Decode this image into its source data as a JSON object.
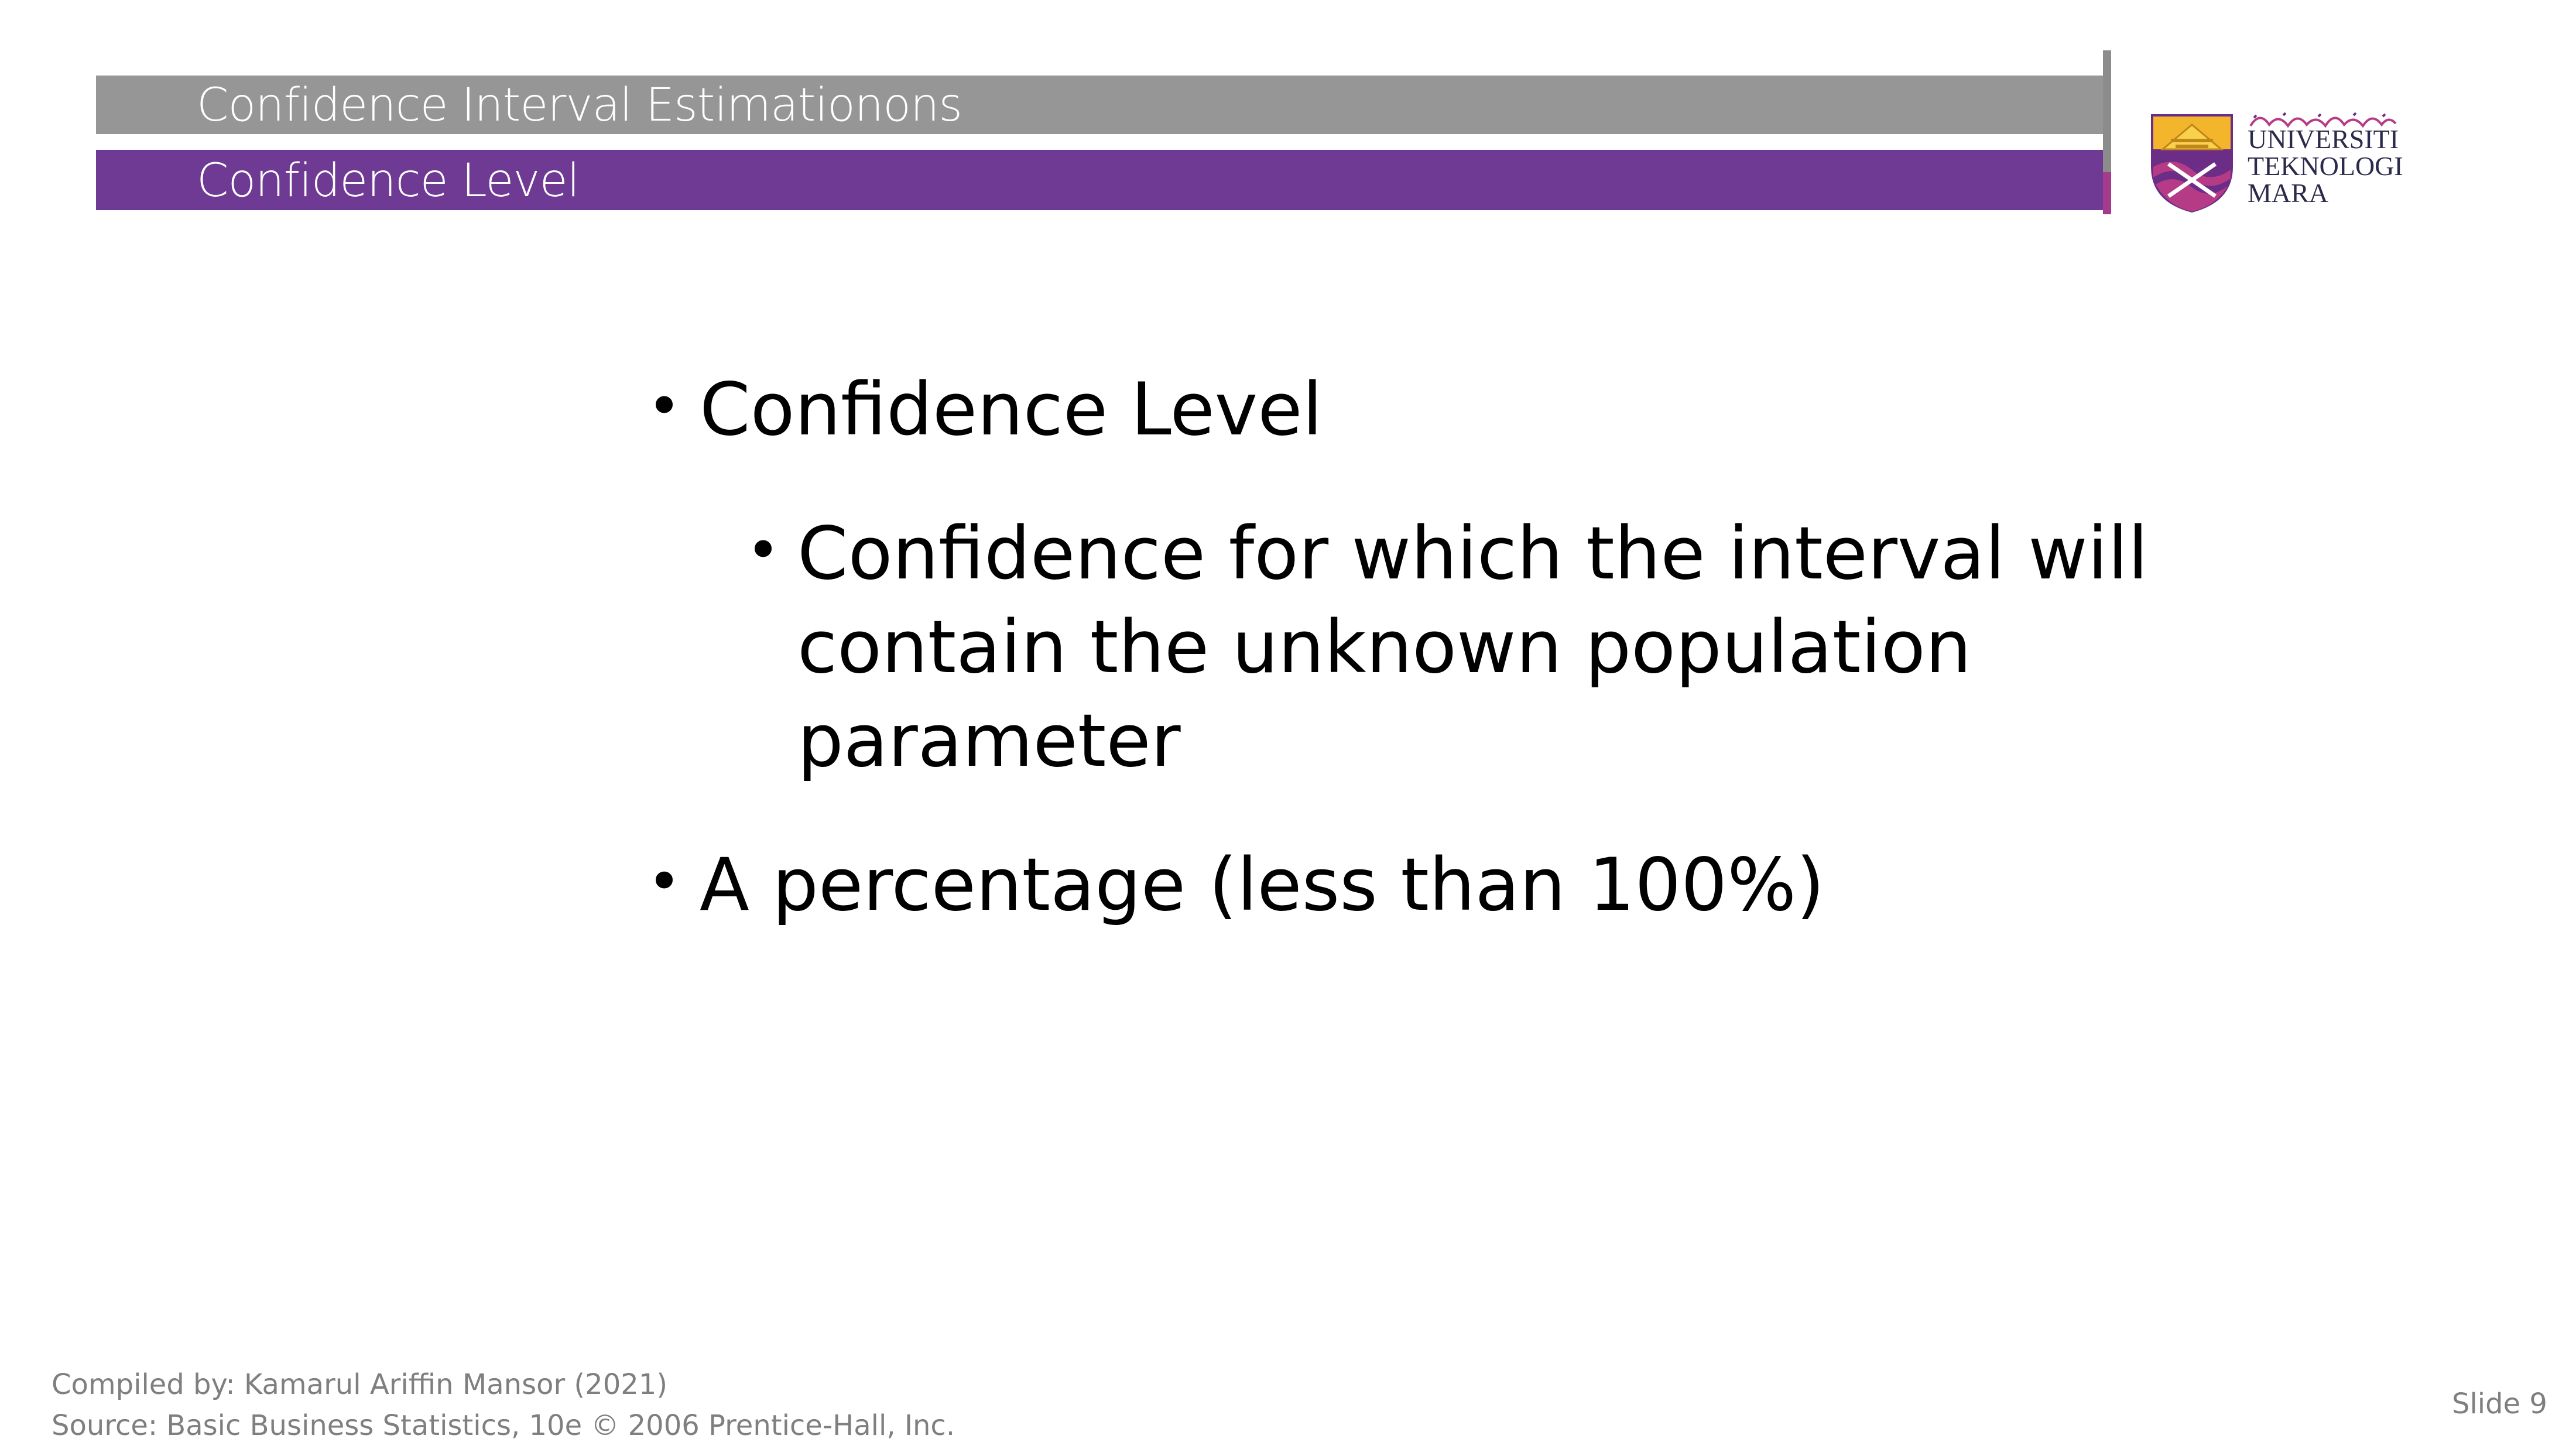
{
  "header": {
    "title": "Confidence Interval Estimationons",
    "subtitle": "Confidence Level"
  },
  "logo": {
    "line1": "UNIVERSITI",
    "line2": "TEKNOLOGI",
    "line3": "MARA",
    "colors": {
      "gold": "#f2b52b",
      "purple": "#6b2d86",
      "magenta": "#b63b86"
    }
  },
  "content": {
    "bullet1": "Confidence Level",
    "bullet2_lines": [
      "Confidence for which the interval will",
      "contain the unknown population",
      "parameter"
    ],
    "bullet3": "A percentage (less than 100%)",
    "bullet_symbol": "•"
  },
  "footer": {
    "compiled_by": "Compiled by: Kamarul Ariffin Mansor (2021)",
    "source": "Source: Basic Business Statistics, 10e © 2006 Prentice-Hall, Inc.",
    "slide_number": "Slide 9"
  },
  "colors": {
    "header_gray": "#969696",
    "header_purple": "#6f3a93",
    "footer_text": "#7f7f7f"
  }
}
